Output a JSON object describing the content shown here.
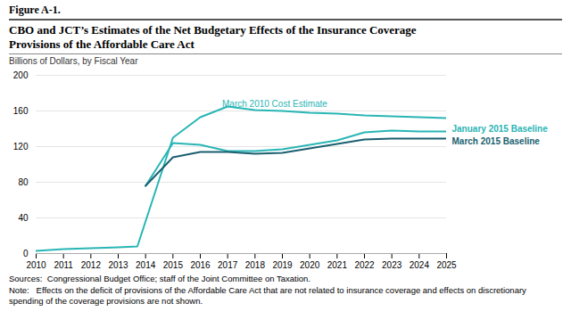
{
  "chart_data": {
    "type": "line",
    "figure_label": "Figure A-1.",
    "title": "CBO and JCT’s Estimates of the Net Budgetary Effects of the Insurance Coverage\nProvisions of the Affordable Care Act",
    "ylabel": "Billions of Dollars, by Fiscal Year",
    "sources": "Sources:  Congressional Budget Office; staff of the Joint Committee on Taxation.",
    "notes": "Note:   Effects on the deficit of provisions of the Affordable Care Act that are not related to insurance coverage and effects on discretionary spending of the coverage provisions are not shown.",
    "xlim": [
      2010,
      2025
    ],
    "xticks": [
      2010,
      2011,
      2012,
      2013,
      2014,
      2015,
      2016,
      2017,
      2018,
      2019,
      2020,
      2021,
      2022,
      2023,
      2024,
      2025
    ],
    "ylim": [
      0,
      200
    ],
    "yticks": [
      0,
      40,
      80,
      120,
      160,
      200
    ],
    "grid": true,
    "series": [
      {
        "name": "March 2010 Cost Estimate",
        "color": "#2ab5b5",
        "x": [
          2010,
          2011,
          2012,
          2013,
          2013.7,
          2015,
          2016,
          2017,
          2018,
          2019,
          2020,
          2021,
          2022,
          2023,
          2024,
          2025
        ],
        "values": [
          3,
          5,
          6,
          7,
          8,
          130,
          153,
          165,
          161,
          160,
          158,
          157,
          155,
          154,
          153,
          152
        ]
      },
      {
        "name": "January 2015 Baseline",
        "color": "#2ab5b5",
        "x": [
          2014,
          2015,
          2016,
          2017,
          2018,
          2019,
          2020,
          2021,
          2022,
          2023,
          2024,
          2025
        ],
        "values": [
          76,
          124,
          122,
          115,
          115,
          117,
          122,
          127,
          136,
          138,
          137,
          137
        ]
      },
      {
        "name": "March 2015 Baseline",
        "color": "#1a5f70",
        "x": [
          2014,
          2015,
          2016,
          2017,
          2018,
          2019,
          2020,
          2021,
          2022,
          2023,
          2024,
          2025
        ],
        "values": [
          76,
          108,
          114,
          114,
          112,
          113,
          118,
          123,
          128,
          129,
          129,
          129
        ]
      }
    ],
    "annotations": [
      {
        "text": "March 2010 Cost Estimate",
        "x": 2016.8,
        "y": 163,
        "color": "#2ab5b5"
      }
    ]
  }
}
